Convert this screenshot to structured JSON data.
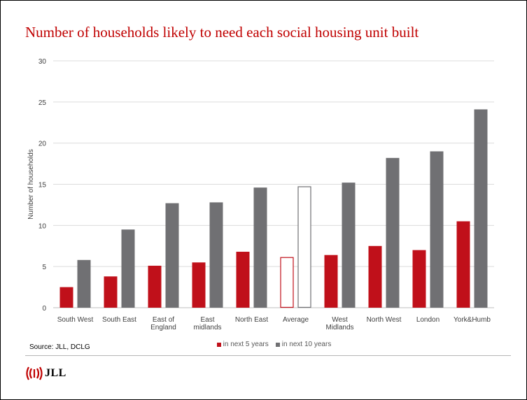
{
  "title": "Number of households likely to need each social housing unit built",
  "source": "Source: JLL, DCLG",
  "logo_text": "JLL",
  "colors": {
    "series1": "#c0101a",
    "series2": "#707073",
    "grid": "#dcdcdc",
    "title": "#c00000"
  },
  "chart_data": {
    "type": "bar",
    "categories": [
      "South West",
      "South East",
      "East of England",
      "East midlands",
      "North East",
      "Average",
      "West Midlands",
      "North West",
      "London",
      "York&Humb"
    ],
    "category_lines": [
      [
        "South West"
      ],
      [
        "South East"
      ],
      [
        "East of",
        "England"
      ],
      [
        "East",
        "midlands"
      ],
      [
        "North East"
      ],
      [
        "Average"
      ],
      [
        "West",
        "Midlands"
      ],
      [
        "North West"
      ],
      [
        "London"
      ],
      [
        "York&Humb"
      ]
    ],
    "series": [
      {
        "name": "in next 5 years",
        "values": [
          2.5,
          3.8,
          5.1,
          5.5,
          6.8,
          6.1,
          6.4,
          7.5,
          7.0,
          10.5
        ]
      },
      {
        "name": "in next 10 years",
        "values": [
          5.8,
          9.5,
          12.7,
          12.8,
          14.6,
          14.7,
          15.2,
          18.2,
          19.0,
          24.1
        ]
      }
    ],
    "highlight_category": "Average",
    "highlight_style": "outline",
    "ylabel": "Number of households",
    "xlabel": "",
    "ylim": [
      0,
      30
    ],
    "yticks": [
      0,
      5,
      10,
      15,
      20,
      25,
      30
    ],
    "grid": true,
    "legend_position": "bottom"
  }
}
